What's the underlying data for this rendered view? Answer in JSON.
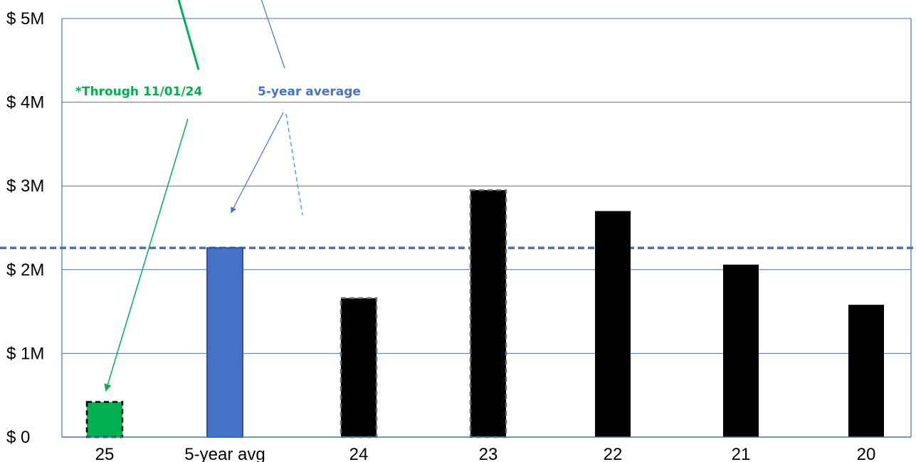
{
  "chart_data": {
    "type": "bar",
    "categories": [
      "25",
      "5-year avg",
      "24",
      "23",
      "22",
      "21",
      "20"
    ],
    "values": [
      420000,
      2260000,
      1660000,
      2950000,
      2700000,
      2060000,
      1580000
    ],
    "ylim": [
      0,
      5000000
    ],
    "yticks": [
      0,
      1000000,
      2000000,
      3000000,
      4000000,
      5000000
    ],
    "ytick_labels": [
      "$ 0",
      "$ 1M",
      "$ 2M",
      "$ 3M",
      "$ 4M",
      "$ 5M"
    ],
    "grid": true,
    "reference_line": {
      "value": 2260000,
      "style": "dashed",
      "color": "#4472C4"
    },
    "bar_styles": [
      "green-dashed",
      "blue",
      "black-dashed",
      "black-dashed",
      "black",
      "black",
      "black"
    ],
    "annotations": [
      {
        "text": "*Through 11/01/24",
        "color": "#00B050",
        "points_to": "25"
      },
      {
        "text": "5-year average",
        "color": "#4472C4",
        "points_to": "5-year avg"
      }
    ]
  },
  "colors": {
    "green": "#00B050",
    "blue": "#4472C4",
    "black": "#000000",
    "grid": "#4472C4"
  }
}
